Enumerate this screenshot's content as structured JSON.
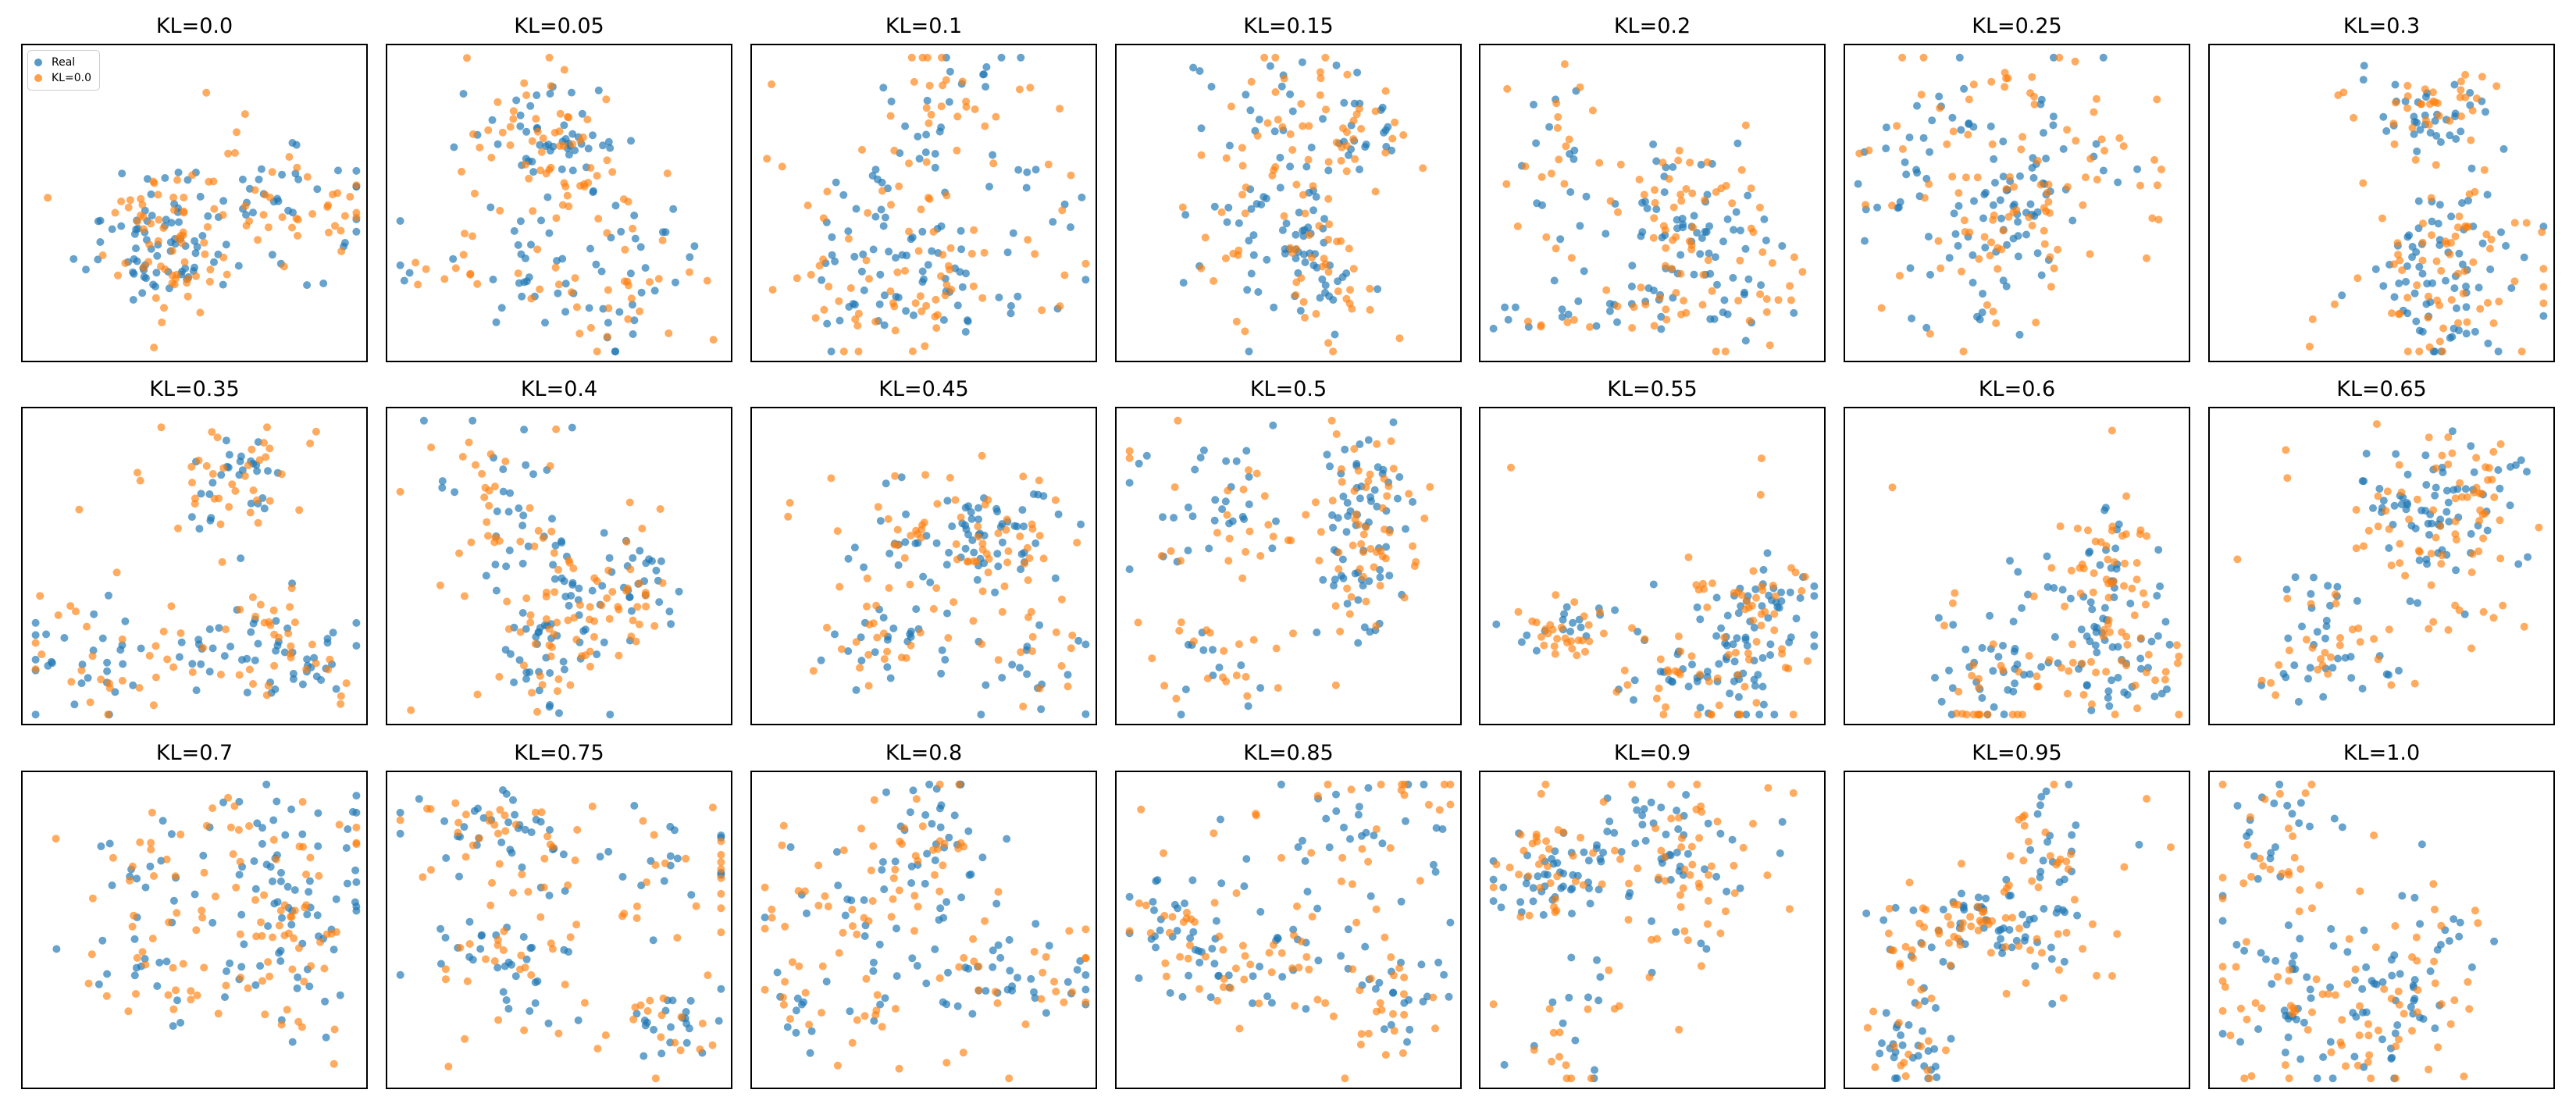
{
  "colors": {
    "real": "#1f77b4",
    "generated": "#ff7f0e",
    "frame": "#000000"
  },
  "legend": {
    "real_label": "Real",
    "generated_label": "KL=0.0",
    "placement": "upper-left of first panel"
  },
  "chart_data": {
    "type": "scatter",
    "grid": false,
    "ticks": "none",
    "panels": [
      {
        "title": "KL=0.0"
      },
      {
        "title": "KL=0.05"
      },
      {
        "title": "KL=0.1"
      },
      {
        "title": "KL=0.15"
      },
      {
        "title": "KL=0.2"
      },
      {
        "title": "KL=0.25"
      },
      {
        "title": "KL=0.3"
      },
      {
        "title": "KL=0.35"
      },
      {
        "title": "KL=0.4"
      },
      {
        "title": "KL=0.45"
      },
      {
        "title": "KL=0.5"
      },
      {
        "title": "KL=0.55"
      },
      {
        "title": "KL=0.6"
      },
      {
        "title": "KL=0.65"
      },
      {
        "title": "KL=0.7"
      },
      {
        "title": "KL=0.75"
      },
      {
        "title": "KL=0.8"
      },
      {
        "title": "KL=0.85"
      },
      {
        "title": "KL=0.9"
      },
      {
        "title": "KL=0.95"
      },
      {
        "title": "KL=1.0"
      }
    ],
    "series": [
      {
        "name": "Real",
        "color": "#1f77b4"
      },
      {
        "name": "KL=0.0",
        "color": "#ff7f0e"
      }
    ]
  }
}
